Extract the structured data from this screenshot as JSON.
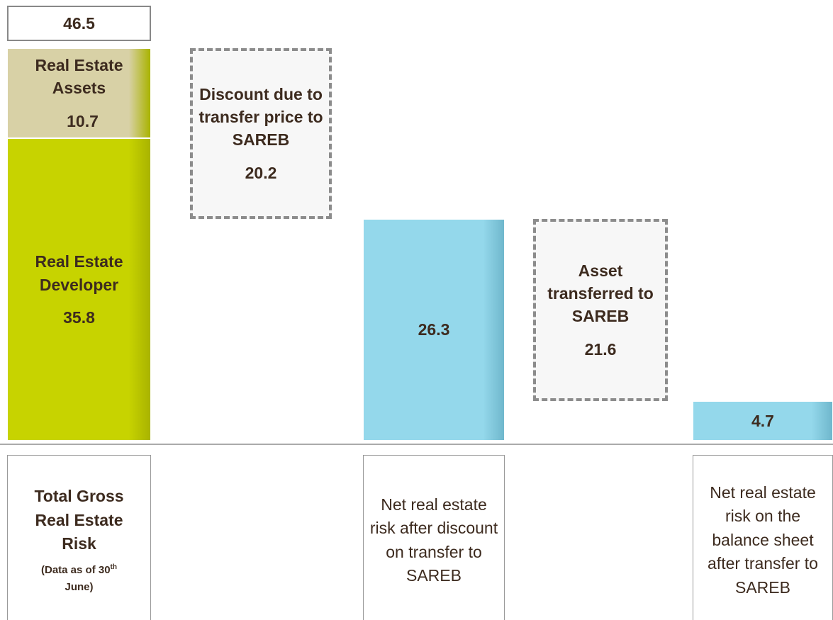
{
  "chart_data": {
    "type": "waterfall",
    "bars": [
      {
        "kind": "total",
        "value": 46.5,
        "category": "Total Gross Real Estate Risk",
        "note": [
          "(Data as of 30",
          "th",
          " June)"
        ],
        "segments": [
          {
            "name": "Real Estate Developer",
            "value": 35.8,
            "color": "#c7d300"
          },
          {
            "name": "Real Estate Assets",
            "value": 10.7,
            "color": "#d8d1a6"
          }
        ]
      },
      {
        "kind": "decrease",
        "name": "Discount due to transfer price to SAREB",
        "value": 20.2
      },
      {
        "kind": "subtotal",
        "value": 26.3,
        "color": "#94d8eb",
        "category": "Net real estate risk after discount on transfer to SAREB"
      },
      {
        "kind": "decrease",
        "name": "Asset transferred to SAREB",
        "value": 21.6
      },
      {
        "kind": "subtotal",
        "value": 4.7,
        "color": "#94d8eb",
        "category": "Net real estate risk on the balance sheet after transfer to SAREB"
      }
    ]
  }
}
